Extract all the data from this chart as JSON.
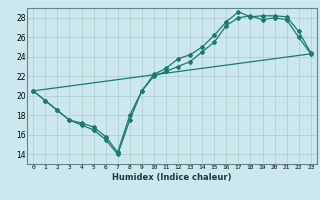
{
  "title": "",
  "xlabel": "Humidex (Indice chaleur)",
  "xlim": [
    -0.5,
    23.5
  ],
  "ylim": [
    13.0,
    29.0
  ],
  "yticks": [
    14,
    16,
    18,
    20,
    22,
    24,
    26,
    28
  ],
  "xticks": [
    0,
    1,
    2,
    3,
    4,
    5,
    6,
    7,
    8,
    9,
    10,
    11,
    12,
    13,
    14,
    15,
    16,
    17,
    18,
    19,
    20,
    21,
    22,
    23
  ],
  "bg_color": "#cce8ee",
  "grid_color": "#aacccc",
  "line_color": "#1a7a6e",
  "series1_x": [
    0,
    1,
    2,
    3,
    4,
    5,
    6,
    7,
    8,
    9,
    10,
    11,
    12,
    13,
    14,
    15,
    16,
    17,
    18,
    19,
    20,
    21,
    22,
    23
  ],
  "series1_y": [
    20.5,
    19.5,
    18.5,
    17.5,
    17.0,
    16.5,
    15.5,
    14.0,
    17.5,
    20.5,
    22.0,
    22.5,
    23.0,
    23.5,
    24.5,
    25.5,
    27.2,
    28.0,
    28.2,
    27.8,
    28.0,
    27.8,
    26.0,
    24.3
  ],
  "series2_x": [
    0,
    1,
    2,
    3,
    4,
    5,
    6,
    7,
    8,
    9,
    10,
    11,
    12,
    13,
    14,
    15,
    16,
    17,
    18,
    19,
    20,
    21,
    22,
    23
  ],
  "series2_y": [
    20.5,
    19.5,
    18.5,
    17.5,
    17.2,
    16.8,
    15.8,
    14.2,
    18.0,
    20.5,
    22.2,
    22.8,
    23.8,
    24.2,
    25.0,
    26.2,
    27.6,
    28.6,
    28.1,
    28.2,
    28.2,
    28.1,
    26.6,
    24.4
  ],
  "series3_x": [
    0,
    23
  ],
  "series3_y": [
    20.5,
    24.3
  ],
  "marker": "D",
  "marker_size": 2.0,
  "linewidth": 0.9
}
